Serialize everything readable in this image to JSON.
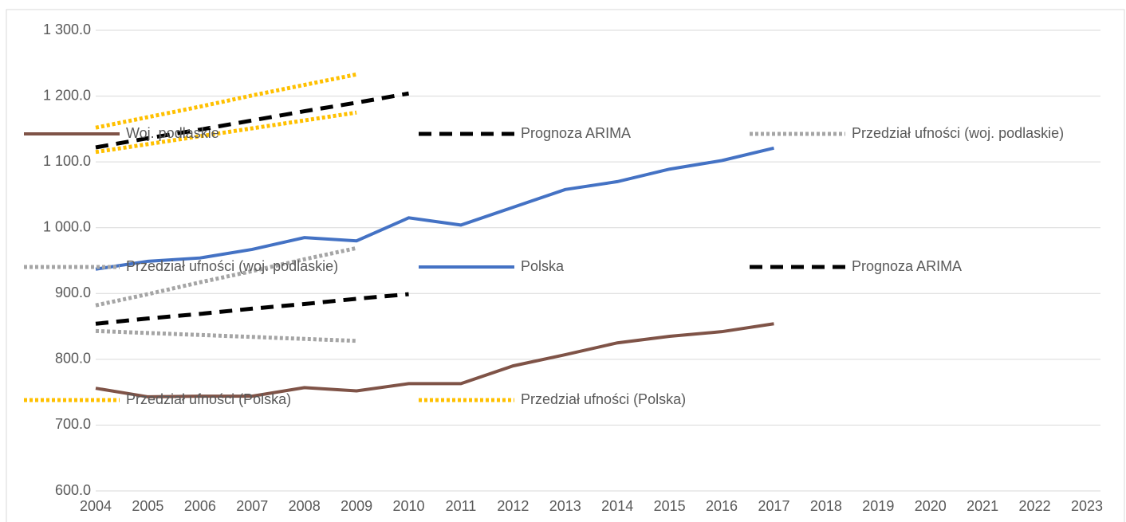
{
  "chart_data": {
    "type": "line",
    "x": [
      2004,
      2005,
      2006,
      2007,
      2008,
      2009,
      2010,
      2011,
      2012,
      2013,
      2014,
      2015,
      2016,
      2017
    ],
    "xlim": [
      2004,
      2023
    ],
    "xticks": [
      2004,
      2005,
      2006,
      2007,
      2008,
      2009,
      2010,
      2011,
      2012,
      2013,
      2014,
      2015,
      2016,
      2017,
      2018,
      2019,
      2020,
      2021,
      2022,
      2023
    ],
    "ylim": [
      600,
      1300
    ],
    "yticks": [
      {
        "value": 600,
        "label": "600.0"
      },
      {
        "value": 700,
        "label": "700.0"
      },
      {
        "value": 800,
        "label": "800.0"
      },
      {
        "value": 900,
        "label": "900.0"
      },
      {
        "value": 1000,
        "label": "1 000.0"
      },
      {
        "value": 1100,
        "label": "1 100.0"
      },
      {
        "value": 1200,
        "label": "1 200.0"
      },
      {
        "value": 1300,
        "label": "1 300.0"
      }
    ],
    "grid": true,
    "series": [
      {
        "name": "Woj. podlaskie",
        "color": "#7f5347",
        "dash": "solid",
        "values": [
          756,
          743,
          744,
          744,
          757,
          752,
          763,
          763,
          790,
          807,
          825,
          835,
          842,
          854
        ]
      },
      {
        "name": "Prognoza ARIMA",
        "color": "#000000",
        "dash": "dash",
        "values": [
          854,
          862,
          869,
          877,
          884,
          892,
          899,
          null,
          null,
          null,
          null,
          null,
          null,
          null
        ]
      },
      {
        "name": "Przedział ufności (woj. podlaskie)",
        "color": "#a5a5a5",
        "dash": "dot",
        "values": [
          882,
          899,
          917,
          934,
          952,
          969,
          null,
          null,
          null,
          null,
          null,
          null,
          null,
          null
        ]
      },
      {
        "name": "Przedział ufności (woj. podlaskie)",
        "color": "#a5a5a5",
        "dash": "dot",
        "values": [
          843,
          840,
          837,
          834,
          831,
          828,
          null,
          null,
          null,
          null,
          null,
          null,
          null,
          null
        ]
      },
      {
        "name": "Polska",
        "color": "#4472c4",
        "dash": "solid",
        "values": [
          937,
          949,
          954,
          967,
          985,
          980,
          1015,
          1004,
          1031,
          1058,
          1070,
          1089,
          1102,
          1121
        ]
      },
      {
        "name": "Prognoza ARIMA",
        "color": "#000000",
        "dash": "dash",
        "values": [
          1122,
          1136,
          1149,
          1163,
          1177,
          1190,
          1204,
          null,
          null,
          null,
          null,
          null,
          null,
          null
        ]
      },
      {
        "name": "Przedział ufności (Polska)",
        "color": "#ffc000",
        "dash": "dot",
        "values": [
          1152,
          1168,
          1184,
          1201,
          1217,
          1233,
          null,
          null,
          null,
          null,
          null,
          null,
          null,
          null
        ]
      },
      {
        "name": "Przedział ufności (Polska)",
        "color": "#ffc000",
        "dash": "dot",
        "values": [
          1115,
          1127,
          1139,
          1151,
          1163,
          1175,
          null,
          null,
          null,
          null,
          null,
          null,
          null,
          null
        ]
      }
    ]
  }
}
